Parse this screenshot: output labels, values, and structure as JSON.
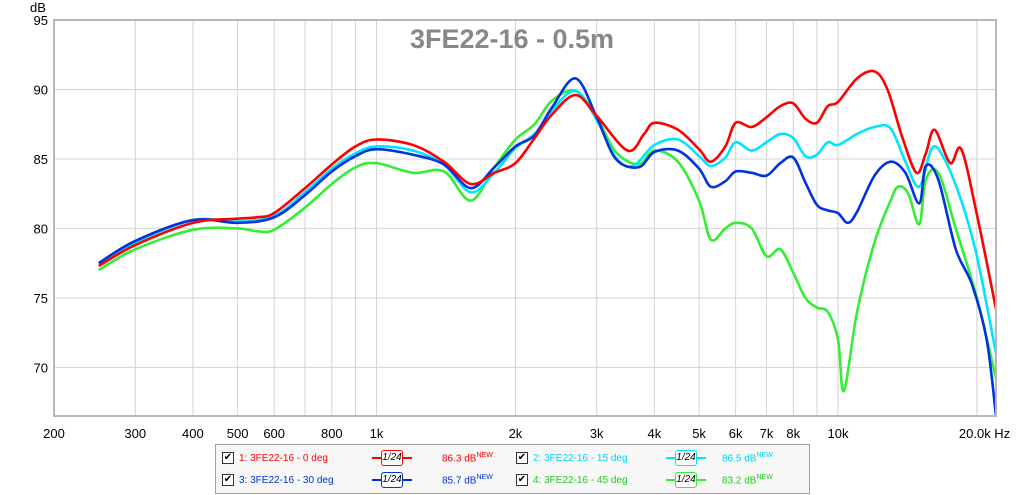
{
  "chart_data": {
    "type": "line",
    "title": "3FE22-16 - 0.5m",
    "ylabel": "dB",
    "xlabel_unit": "Hz",
    "x_scale": "log",
    "xlim": [
      200,
      22000
    ],
    "ylim": [
      66.5,
      95
    ],
    "grid": true,
    "x_ticks": [
      {
        "v": 200,
        "label": "200"
      },
      {
        "v": 300,
        "label": "300"
      },
      {
        "v": 400,
        "label": "400"
      },
      {
        "v": 500,
        "label": "500"
      },
      {
        "v": 600,
        "label": "600"
      },
      {
        "v": 800,
        "label": "800"
      },
      {
        "v": 1000,
        "label": "1k"
      },
      {
        "v": 2000,
        "label": "2k"
      },
      {
        "v": 3000,
        "label": "3k"
      },
      {
        "v": 4000,
        "label": "4k"
      },
      {
        "v": 5000,
        "label": "5k"
      },
      {
        "v": 6000,
        "label": "6k"
      },
      {
        "v": 7000,
        "label": "7k"
      },
      {
        "v": 8000,
        "label": "8k"
      },
      {
        "v": 10000,
        "label": "10k"
      },
      {
        "v": 20000,
        "label": "20.0k Hz"
      }
    ],
    "y_ticks": [
      {
        "v": 95,
        "label": "95"
      },
      {
        "v": 90,
        "label": "90"
      },
      {
        "v": 85,
        "label": "85"
      },
      {
        "v": 80,
        "label": "80"
      },
      {
        "v": 75,
        "label": "75"
      },
      {
        "v": 70,
        "label": "70"
      }
    ],
    "series": [
      {
        "name": "1: 3FE22-16 - 0 deg",
        "color": "#ff0000",
        "level": "86.3 dB",
        "points": [
          [
            250,
            77.3
          ],
          [
            300,
            78.8
          ],
          [
            400,
            80.4
          ],
          [
            500,
            80.7
          ],
          [
            550,
            80.8
          ],
          [
            600,
            81.1
          ],
          [
            700,
            82.9
          ],
          [
            800,
            84.6
          ],
          [
            900,
            85.9
          ],
          [
            1000,
            86.4
          ],
          [
            1200,
            86.0
          ],
          [
            1400,
            84.8
          ],
          [
            1600,
            83.2
          ],
          [
            1800,
            84.0
          ],
          [
            2000,
            84.7
          ],
          [
            2200,
            86.5
          ],
          [
            2400,
            88.2
          ],
          [
            2700,
            89.6
          ],
          [
            3000,
            88.1
          ],
          [
            3500,
            85.6
          ],
          [
            3800,
            86.8
          ],
          [
            4000,
            87.6
          ],
          [
            4500,
            87.1
          ],
          [
            5000,
            85.7
          ],
          [
            5300,
            84.8
          ],
          [
            5700,
            85.9
          ],
          [
            6000,
            87.6
          ],
          [
            6500,
            87.3
          ],
          [
            7000,
            88.0
          ],
          [
            7500,
            88.8
          ],
          [
            8000,
            89.0
          ],
          [
            8500,
            87.9
          ],
          [
            9000,
            87.6
          ],
          [
            9500,
            88.8
          ],
          [
            10000,
            89.1
          ],
          [
            11000,
            90.8
          ],
          [
            12000,
            91.3
          ],
          [
            12800,
            90.0
          ],
          [
            13800,
            86.5
          ],
          [
            14800,
            84.0
          ],
          [
            15500,
            85.4
          ],
          [
            16200,
            87.1
          ],
          [
            17500,
            84.7
          ],
          [
            18500,
            85.7
          ],
          [
            20000,
            81.0
          ],
          [
            22000,
            74.2
          ]
        ]
      },
      {
        "name": "2: 3FE22-16 - 15 deg",
        "color": "#00e5ff",
        "level": "86.5 dB",
        "points": [
          [
            250,
            77.5
          ],
          [
            300,
            79.0
          ],
          [
            400,
            80.6
          ],
          [
            500,
            80.5
          ],
          [
            600,
            80.9
          ],
          [
            700,
            82.6
          ],
          [
            800,
            84.3
          ],
          [
            900,
            85.4
          ],
          [
            1000,
            85.9
          ],
          [
            1200,
            85.6
          ],
          [
            1400,
            84.6
          ],
          [
            1600,
            82.6
          ],
          [
            1800,
            84.0
          ],
          [
            2000,
            85.8
          ],
          [
            2200,
            86.8
          ],
          [
            2400,
            88.5
          ],
          [
            2700,
            89.9
          ],
          [
            3000,
            87.8
          ],
          [
            3300,
            85.1
          ],
          [
            3600,
            84.5
          ],
          [
            4000,
            86.0
          ],
          [
            4500,
            86.4
          ],
          [
            5000,
            85.2
          ],
          [
            5300,
            84.5
          ],
          [
            5700,
            85.1
          ],
          [
            6000,
            86.2
          ],
          [
            6500,
            85.6
          ],
          [
            7000,
            86.2
          ],
          [
            7500,
            86.8
          ],
          [
            8000,
            86.5
          ],
          [
            8500,
            85.2
          ],
          [
            9000,
            85.3
          ],
          [
            9500,
            86.2
          ],
          [
            10000,
            86.0
          ],
          [
            11000,
            86.8
          ],
          [
            12000,
            87.3
          ],
          [
            13000,
            87.2
          ],
          [
            14000,
            84.8
          ],
          [
            15000,
            83.0
          ],
          [
            16000,
            85.8
          ],
          [
            17000,
            85.0
          ],
          [
            18500,
            82.0
          ],
          [
            20000,
            78.0
          ],
          [
            22000,
            71.0
          ]
        ]
      },
      {
        "name": "3: 3FE22-16 - 30 deg",
        "color": "#0033dd",
        "level": "85.7 dB",
        "points": [
          [
            250,
            77.5
          ],
          [
            300,
            79.1
          ],
          [
            400,
            80.6
          ],
          [
            500,
            80.4
          ],
          [
            600,
            80.8
          ],
          [
            700,
            82.4
          ],
          [
            800,
            84.1
          ],
          [
            900,
            85.2
          ],
          [
            1000,
            85.7
          ],
          [
            1200,
            85.3
          ],
          [
            1400,
            84.6
          ],
          [
            1600,
            82.9
          ],
          [
            1800,
            84.4
          ],
          [
            2000,
            85.9
          ],
          [
            2200,
            86.7
          ],
          [
            2400,
            88.7
          ],
          [
            2700,
            90.8
          ],
          [
            3000,
            88.0
          ],
          [
            3300,
            85.0
          ],
          [
            3700,
            84.4
          ],
          [
            4000,
            85.5
          ],
          [
            4500,
            85.6
          ],
          [
            5000,
            84.3
          ],
          [
            5300,
            83.0
          ],
          [
            5700,
            83.4
          ],
          [
            6000,
            84.1
          ],
          [
            6500,
            84.0
          ],
          [
            7000,
            83.8
          ],
          [
            7500,
            84.7
          ],
          [
            8000,
            85.1
          ],
          [
            8500,
            83.3
          ],
          [
            9000,
            81.7
          ],
          [
            9500,
            81.3
          ],
          [
            10000,
            81.1
          ],
          [
            10500,
            80.4
          ],
          [
            11000,
            81.2
          ],
          [
            12000,
            83.8
          ],
          [
            13000,
            84.8
          ],
          [
            14000,
            84.0
          ],
          [
            15000,
            81.8
          ],
          [
            15500,
            84.5
          ],
          [
            16500,
            83.5
          ],
          [
            18000,
            78.5
          ],
          [
            19500,
            76.0
          ],
          [
            21000,
            72.0
          ],
          [
            22000,
            66.5
          ]
        ]
      },
      {
        "name": "4: 3FE22-16 - 45 deg",
        "color": "#33ee33",
        "level": "83.2 dB",
        "points": [
          [
            250,
            77.0
          ],
          [
            300,
            78.5
          ],
          [
            400,
            79.9
          ],
          [
            500,
            80.0
          ],
          [
            550,
            79.8
          ],
          [
            600,
            79.9
          ],
          [
            700,
            81.5
          ],
          [
            800,
            83.2
          ],
          [
            900,
            84.4
          ],
          [
            1000,
            84.7
          ],
          [
            1200,
            84.0
          ],
          [
            1400,
            84.1
          ],
          [
            1600,
            82.0
          ],
          [
            1800,
            84.4
          ],
          [
            2000,
            86.4
          ],
          [
            2200,
            87.5
          ],
          [
            2400,
            89.2
          ],
          [
            2700,
            89.9
          ],
          [
            3000,
            88.0
          ],
          [
            3300,
            85.5
          ],
          [
            3700,
            84.6
          ],
          [
            4000,
            85.6
          ],
          [
            4500,
            84.8
          ],
          [
            5000,
            82.0
          ],
          [
            5300,
            79.2
          ],
          [
            5700,
            80.0
          ],
          [
            6000,
            80.4
          ],
          [
            6500,
            80.0
          ],
          [
            7000,
            78.0
          ],
          [
            7500,
            78.5
          ],
          [
            8000,
            76.8
          ],
          [
            8500,
            75.0
          ],
          [
            9000,
            74.3
          ],
          [
            9500,
            74.0
          ],
          [
            10000,
            72.0
          ],
          [
            10300,
            68.3
          ],
          [
            11000,
            74.0
          ],
          [
            12000,
            79.0
          ],
          [
            13000,
            82.0
          ],
          [
            13500,
            83.0
          ],
          [
            14200,
            82.5
          ],
          [
            15000,
            80.3
          ],
          [
            15500,
            83.5
          ],
          [
            16500,
            84.0
          ],
          [
            18000,
            80.0
          ],
          [
            20000,
            75.0
          ],
          [
            22000,
            69.2
          ]
        ]
      }
    ]
  },
  "legend": {
    "smoothing_label": "1/24",
    "new_badge": "NEW",
    "check_mark": "✔"
  }
}
